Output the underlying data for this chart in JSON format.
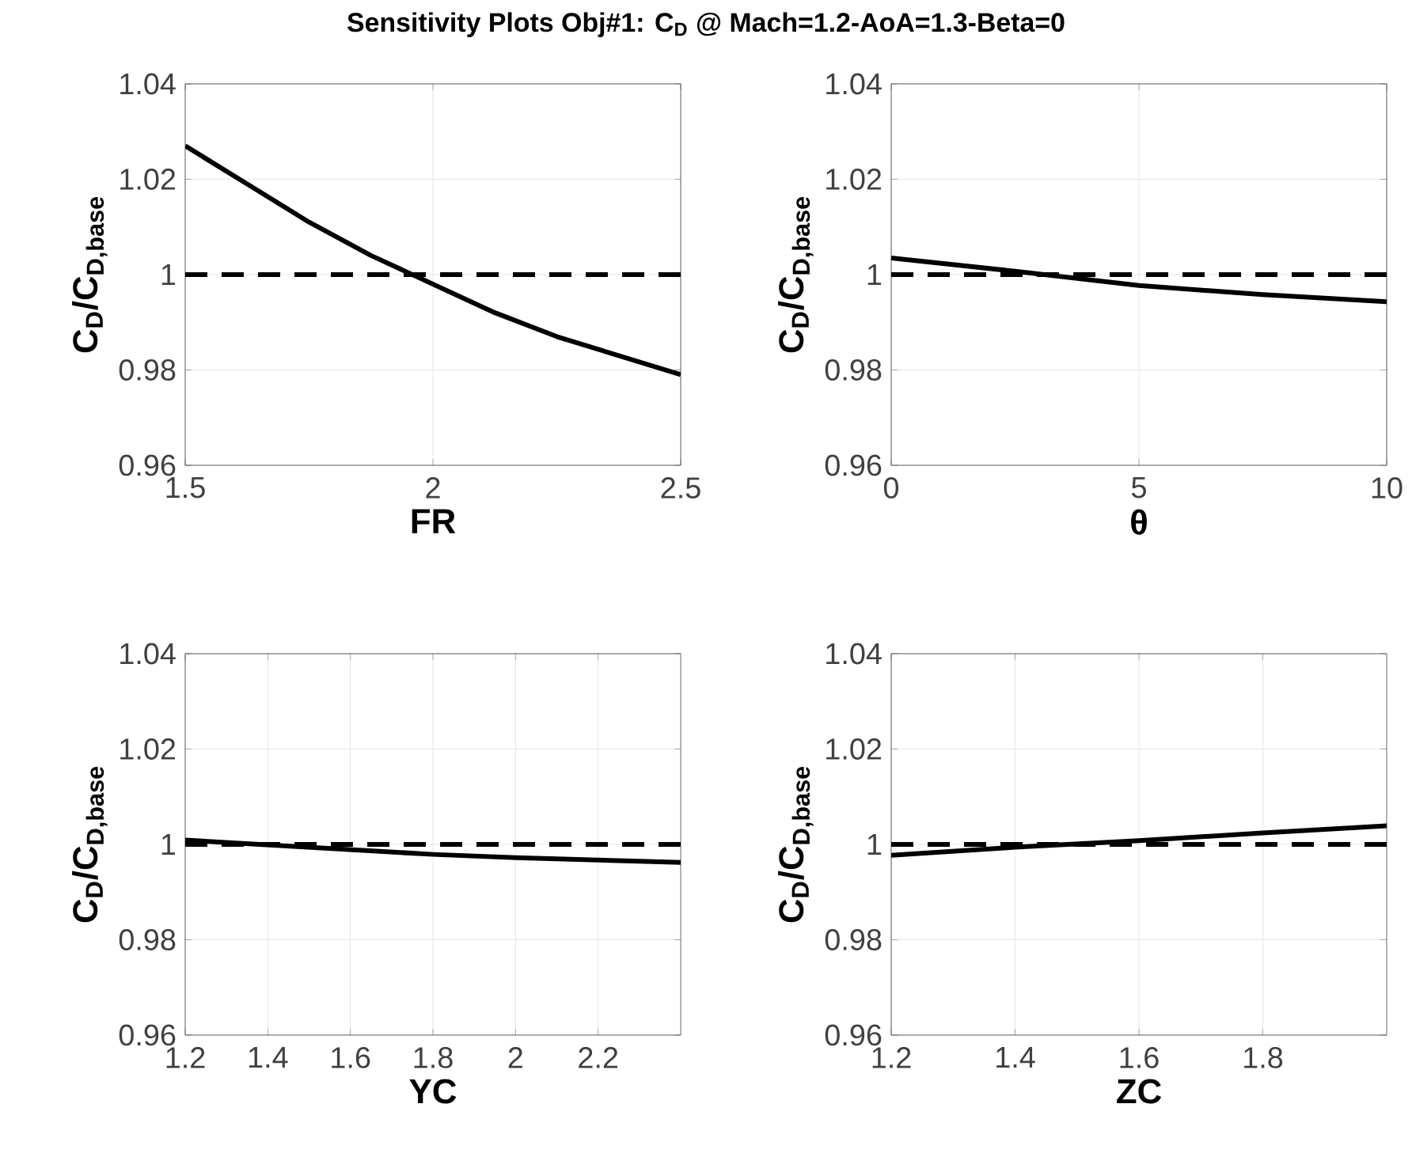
{
  "chart_data": [
    {
      "type": "line",
      "title": "Sensitivity Plots Obj#1: C$_{D}$ @ Mach=1.2-AoA=1.3-Beta=0",
      "xlabel": "FR",
      "ylabel": "C$_{D}$/C$_{D,base}$",
      "x": [
        1.5,
        1.625,
        1.75,
        1.875,
        2.0,
        2.125,
        2.25,
        2.375,
        2.5
      ],
      "series": [
        {
          "color": "#000000",
          "values": [
            1.027,
            1.019,
            1.011,
            1.004,
            0.998,
            0.992,
            0.987,
            0.983,
            0.979
          ]
        }
      ],
      "xlim": [
        1.5,
        2.5
      ],
      "xticks": [
        1.5,
        2,
        2.5
      ],
      "ylim": [
        0.96,
        1.04
      ],
      "yticks": [
        0.96,
        0.98,
        1,
        1.02,
        1.04
      ],
      "ref_lines": [
        {
          "axis": "y",
          "value": 1,
          "color": "#000000",
          "line_style": "dashed"
        }
      ],
      "grid": true
    },
    {
      "type": "line",
      "xlabel": "θ",
      "ylabel": "C$_{D}$/C$_{D,base}$",
      "x": [
        0,
        2.5,
        5,
        7.5,
        10
      ],
      "series": [
        {
          "color": "#000000",
          "values": [
            1.0035,
            1.0007,
            0.9977,
            0.9958,
            0.9943
          ]
        }
      ],
      "xlim": [
        0,
        10
      ],
      "xticks": [
        0,
        5,
        10
      ],
      "ylim": [
        0.96,
        1.04
      ],
      "yticks": [
        0.96,
        0.98,
        1,
        1.02,
        1.04
      ],
      "ref_lines": [
        {
          "axis": "y",
          "value": 1,
          "color": "#000000",
          "line_style": "dashed"
        }
      ],
      "grid": true
    },
    {
      "type": "line",
      "xlabel": "YC",
      "ylabel": "C$_{D}$/C$_{D,base}$",
      "x": [
        1.2,
        1.6,
        1.8,
        2.0,
        2.4
      ],
      "series": [
        {
          "color": "#000000",
          "values": [
            1.0009,
            0.9989,
            0.9979,
            0.9972,
            0.9962
          ]
        }
      ],
      "xlim": [
        1.2,
        2.4
      ],
      "xticks": [
        1.2,
        1.4,
        1.6,
        1.8,
        2,
        2.2
      ],
      "ylim": [
        0.96,
        1.04
      ],
      "yticks": [
        0.96,
        0.98,
        1,
        1.02,
        1.04
      ],
      "ref_lines": [
        {
          "axis": "y",
          "value": 1,
          "color": "#000000",
          "line_style": "dashed"
        }
      ],
      "grid": true
    },
    {
      "type": "line",
      "xlabel": "ZC",
      "ylabel": "C$_{D}$/C$_{D,base}$",
      "x": [
        1.2,
        1.4,
        1.6,
        1.8,
        2.0
      ],
      "series": [
        {
          "color": "#000000",
          "values": [
            0.9977,
            0.9994,
            1.0008,
            1.0024,
            1.0039
          ]
        }
      ],
      "xlim": [
        1.2,
        2.0
      ],
      "xticks": [
        1.2,
        1.4,
        1.6,
        1.8
      ],
      "ylim": [
        0.96,
        1.04
      ],
      "yticks": [
        0.96,
        0.98,
        1,
        1.02,
        1.04
      ],
      "ref_lines": [
        {
          "axis": "y",
          "value": 1,
          "color": "#000000",
          "line_style": "dashed"
        }
      ],
      "grid": true
    }
  ]
}
